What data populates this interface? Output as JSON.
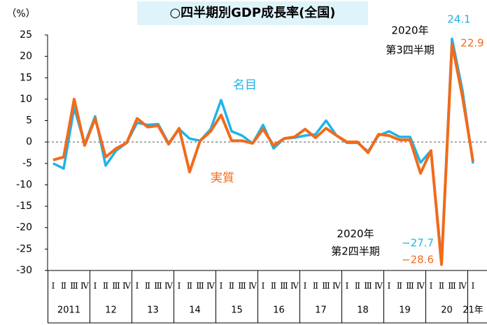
{
  "chart_data": {
    "type": "line",
    "title": "○四半期別GDP成長率(全国)",
    "y_label": "（%）",
    "categories": [
      "Ⅰ",
      "Ⅱ",
      "Ⅲ",
      "Ⅳ",
      "Ⅰ",
      "Ⅱ",
      "Ⅲ",
      "Ⅳ",
      "Ⅰ",
      "Ⅱ",
      "Ⅲ",
      "Ⅳ",
      "Ⅰ",
      "Ⅱ",
      "Ⅲ",
      "Ⅳ",
      "Ⅰ",
      "Ⅱ",
      "Ⅲ",
      "Ⅳ",
      "Ⅰ",
      "Ⅱ",
      "Ⅲ",
      "Ⅳ",
      "Ⅰ",
      "Ⅱ",
      "Ⅲ",
      "Ⅳ",
      "Ⅰ",
      "Ⅱ",
      "Ⅲ",
      "Ⅳ",
      "Ⅰ",
      "Ⅱ",
      "Ⅲ",
      "Ⅳ",
      "Ⅰ",
      "Ⅱ",
      "Ⅲ",
      "Ⅳ",
      "Ⅰ"
    ],
    "year_labels": [
      "2011",
      "12",
      "13",
      "14",
      "15",
      "16",
      "17",
      "18",
      "19",
      "20",
      "21年"
    ],
    "series": [
      {
        "name": "名目",
        "color": "#1db4ea",
        "values": [
          -5,
          -6.2,
          8,
          -0.5,
          6,
          -5.5,
          -2,
          -0.2,
          4.5,
          4,
          4.2,
          -0.3,
          3,
          0.8,
          0.3,
          3,
          9.8,
          2.5,
          1.5,
          -0.3,
          4,
          -1.5,
          0.8,
          1,
          1.5,
          1.8,
          5,
          1.5,
          -0.2,
          -0.2,
          -2.2,
          1.5,
          2.5,
          1.2,
          1.2,
          -4.8,
          -2,
          -27.7,
          24.1,
          12,
          -5
        ]
      },
      {
        "name": "実質",
        "color": "#f26a1b",
        "values": [
          -4.2,
          -3.5,
          10,
          -0.8,
          5.5,
          -3.5,
          -1.5,
          -0.2,
          5.5,
          3.5,
          3.8,
          -0.5,
          3.2,
          -7,
          0.3,
          2.5,
          6.3,
          0.3,
          0.3,
          -0.3,
          3,
          -0.8,
          0.8,
          1.2,
          3,
          1,
          3.2,
          1.5,
          0,
          0,
          -2.5,
          1.8,
          1.5,
          0.5,
          0.5,
          -7.3,
          -2,
          -28.6,
          22.9,
          10.5,
          -4.5
        ]
      }
    ],
    "annotations": [
      "2020年",
      "第3四半期",
      "24.1",
      "22.9",
      "2020年",
      "第2四半期",
      "−27.7",
      "−28.6"
    ],
    "ylim": [
      -30,
      25
    ],
    "yticks": [
      -30,
      -25,
      -20,
      -15,
      -10,
      -5,
      0,
      5,
      10,
      15,
      20,
      25
    ],
    "zero_line": true
  }
}
